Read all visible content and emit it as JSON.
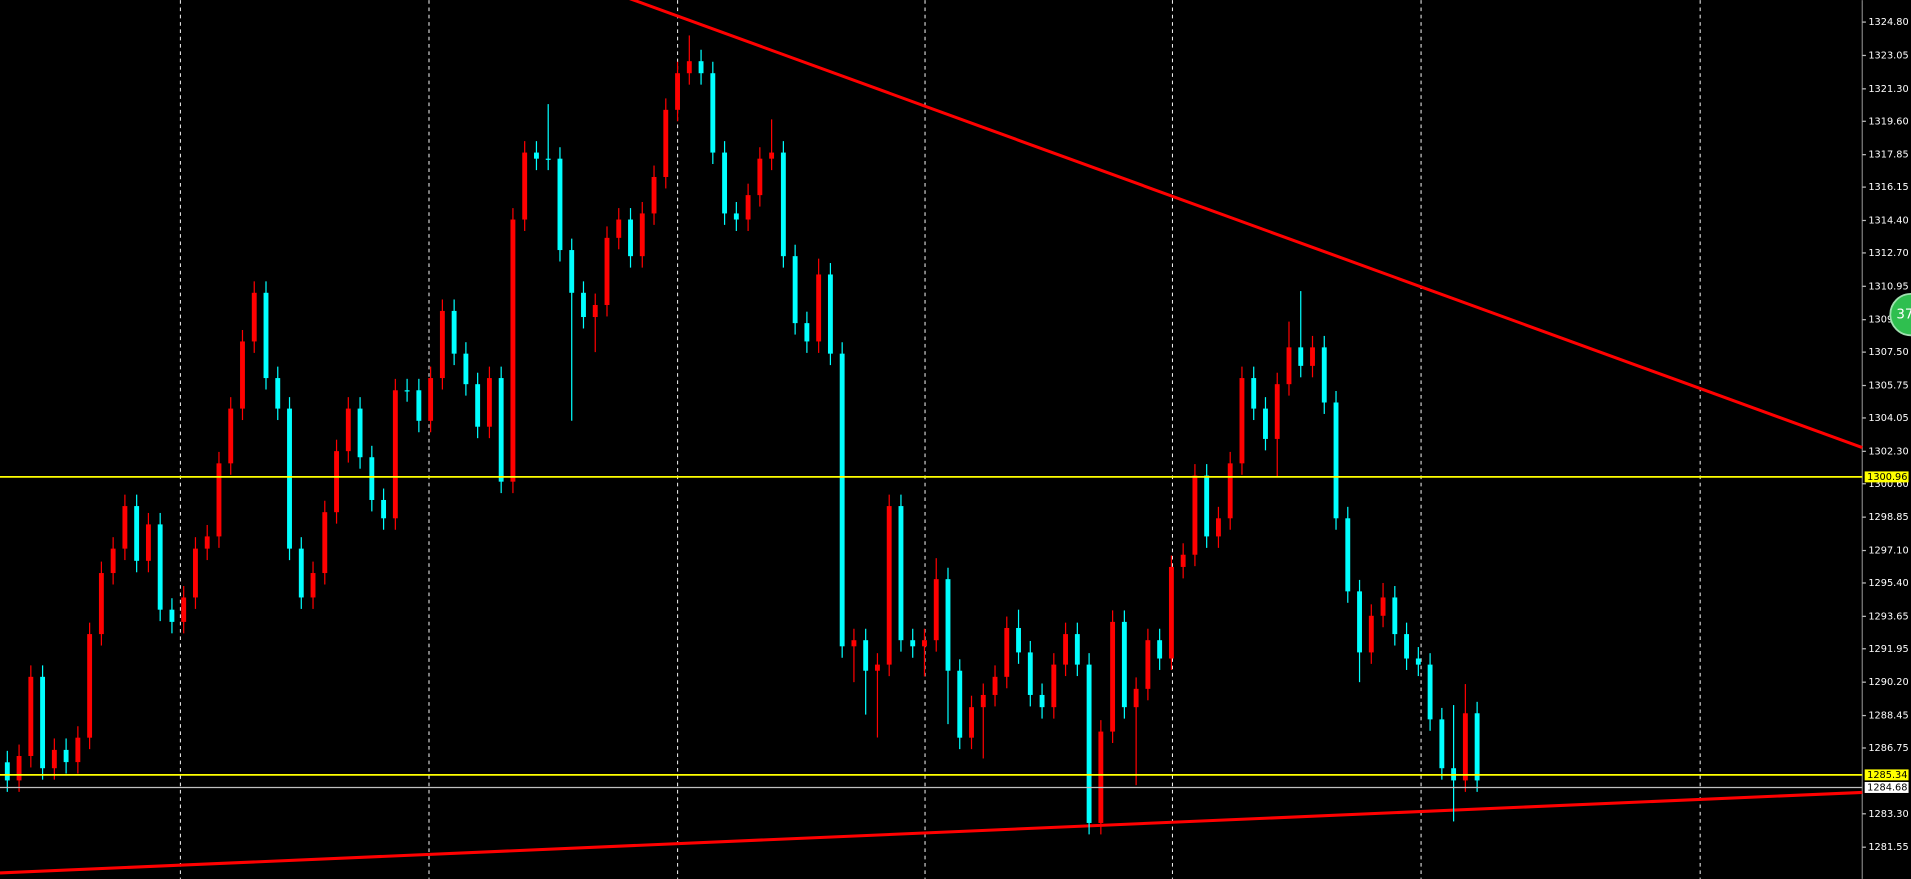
{
  "chart_data": {
    "type": "candlestick",
    "open": [
      1286.0,
      1285.05,
      1286.33,
      1290.48,
      1285.69,
      1286.65,
      1286.01,
      1287.29,
      1292.72,
      1295.92,
      1297.2,
      1299.43,
      1296.56,
      1298.47,
      1294.0,
      1293.36,
      1294.64,
      1297.2,
      1297.84,
      1301.67,
      1304.54,
      1308.06,
      1310.61,
      1306.14,
      1304.54,
      1297.2,
      1294.64,
      1295.92,
      1299.11,
      1302.31,
      1304.54,
      1301.99,
      1299.75,
      1298.79,
      1305.5,
      1305.5,
      1303.9,
      1306.14,
      1309.66,
      1307.42,
      1305.82,
      1303.59,
      1306.14,
      1300.71,
      1314.45,
      1317.96,
      1317.64,
      1317.64,
      1312.85,
      1310.61,
      1309.34,
      1309.97,
      1313.49,
      1314.45,
      1312.53,
      1314.77,
      1316.68,
      1320.2,
      1322.12,
      1322.75,
      1322.12,
      1317.96,
      1314.77,
      1314.45,
      1315.73,
      1317.64,
      1317.96,
      1312.53,
      1309.02,
      1308.06,
      1311.57,
      1307.42,
      1292.08,
      1292.4,
      1290.8,
      1291.12,
      1299.43,
      1292.4,
      1292.08,
      1292.4,
      1295.6,
      1290.8,
      1287.29,
      1288.89,
      1289.53,
      1290.48,
      1293.04,
      1291.76,
      1289.53,
      1288.89,
      1291.12,
      1292.72,
      1291.12,
      1282.82,
      1287.61,
      1293.36,
      1288.89,
      1289.85,
      1292.4,
      1291.44,
      1296.24,
      1296.88,
      1301.03,
      1297.84,
      1298.79,
      1301.67,
      1306.14,
      1304.54,
      1302.95,
      1305.82,
      1307.75,
      1306.78,
      1307.75,
      1304.86,
      1298.79,
      1294.96,
      1291.76,
      1293.68,
      1294.64,
      1292.72,
      1291.44,
      1291.12,
      1288.25,
      1285.69,
      1285.05,
      1288.57
    ],
    "high": [
      1286.6,
      1286.93,
      1291.08,
      1291.08,
      1287.25,
      1287.25,
      1287.89,
      1293.32,
      1296.52,
      1297.8,
      1300.03,
      1300.03,
      1299.07,
      1299.07,
      1294.6,
      1295.24,
      1297.8,
      1298.44,
      1302.27,
      1305.14,
      1308.66,
      1311.21,
      1311.21,
      1306.74,
      1305.14,
      1297.8,
      1296.52,
      1299.71,
      1302.91,
      1305.14,
      1305.14,
      1302.59,
      1300.35,
      1306.1,
      1306.1,
      1306.1,
      1306.74,
      1310.26,
      1310.26,
      1308.02,
      1306.42,
      1306.74,
      1306.74,
      1315.05,
      1318.56,
      1318.56,
      1320.5,
      1318.24,
      1313.45,
      1311.21,
      1310.57,
      1314.09,
      1315.05,
      1315.05,
      1315.37,
      1317.28,
      1320.8,
      1322.72,
      1324.1,
      1323.35,
      1322.72,
      1318.56,
      1315.37,
      1316.33,
      1318.24,
      1319.7,
      1318.56,
      1313.13,
      1309.62,
      1312.4,
      1312.17,
      1308.02,
      1293.0,
      1293.0,
      1291.72,
      1300.03,
      1300.03,
      1293.0,
      1293.0,
      1296.7,
      1296.2,
      1291.4,
      1289.49,
      1290.13,
      1291.08,
      1293.64,
      1294.0,
      1292.36,
      1290.13,
      1291.72,
      1293.32,
      1293.32,
      1291.72,
      1288.21,
      1293.96,
      1293.96,
      1290.45,
      1293.0,
      1293.0,
      1296.84,
      1297.48,
      1301.63,
      1301.63,
      1299.39,
      1302.27,
      1306.74,
      1306.74,
      1305.14,
      1306.42,
      1309.1,
      1310.7,
      1308.35,
      1308.35,
      1305.46,
      1299.39,
      1295.56,
      1294.28,
      1295.4,
      1295.24,
      1293.32,
      1292.04,
      1291.72,
      1288.85,
      1289.0,
      1290.1,
      1289.17
    ],
    "low": [
      1284.45,
      1284.45,
      1285.73,
      1285.09,
      1285.09,
      1285.41,
      1285.41,
      1286.69,
      1292.12,
      1295.32,
      1296.6,
      1295.96,
      1295.96,
      1293.4,
      1292.76,
      1292.76,
      1294.04,
      1296.6,
      1297.24,
      1301.07,
      1303.94,
      1307.46,
      1305.54,
      1303.94,
      1296.6,
      1294.04,
      1294.04,
      1295.32,
      1298.51,
      1301.71,
      1301.39,
      1299.15,
      1298.19,
      1298.19,
      1304.9,
      1303.3,
      1303.3,
      1305.54,
      1306.82,
      1305.22,
      1302.99,
      1302.99,
      1300.11,
      1300.11,
      1313.85,
      1317.04,
      1317.04,
      1312.25,
      1303.9,
      1308.74,
      1307.5,
      1309.37,
      1312.89,
      1311.93,
      1311.93,
      1314.17,
      1316.08,
      1319.6,
      1321.52,
      1321.52,
      1317.36,
      1314.17,
      1313.85,
      1313.85,
      1315.13,
      1317.04,
      1311.93,
      1308.42,
      1307.46,
      1307.46,
      1306.82,
      1291.48,
      1290.2,
      1288.5,
      1287.3,
      1290.52,
      1291.8,
      1291.48,
      1290.5,
      1291.8,
      1288.0,
      1286.69,
      1286.69,
      1286.2,
      1288.93,
      1289.88,
      1291.16,
      1288.93,
      1288.29,
      1288.29,
      1290.52,
      1290.52,
      1282.22,
      1282.22,
      1287.01,
      1288.29,
      1284.8,
      1289.25,
      1290.84,
      1290.84,
      1295.64,
      1296.28,
      1297.24,
      1297.24,
      1298.19,
      1301.07,
      1303.94,
      1302.35,
      1301.0,
      1305.22,
      1306.18,
      1306.18,
      1304.26,
      1298.19,
      1294.36,
      1290.2,
      1291.16,
      1293.08,
      1292.12,
      1290.84,
      1290.52,
      1287.65,
      1285.09,
      1282.9,
      1284.45,
      1284.45
    ],
    "close": [
      1285.05,
      1286.33,
      1290.48,
      1285.69,
      1286.65,
      1286.01,
      1287.29,
      1292.72,
      1295.92,
      1297.2,
      1299.43,
      1296.56,
      1298.47,
      1294.0,
      1293.36,
      1294.64,
      1297.2,
      1297.84,
      1301.67,
      1304.54,
      1308.06,
      1310.61,
      1306.14,
      1304.54,
      1297.2,
      1294.64,
      1295.92,
      1299.11,
      1302.31,
      1304.54,
      1301.99,
      1299.75,
      1298.79,
      1305.5,
      1305.5,
      1303.9,
      1306.14,
      1309.66,
      1307.42,
      1305.82,
      1303.59,
      1306.14,
      1300.71,
      1314.45,
      1317.96,
      1317.64,
      1317.64,
      1312.85,
      1310.61,
      1309.34,
      1309.97,
      1313.49,
      1314.45,
      1312.53,
      1314.77,
      1316.68,
      1320.2,
      1322.12,
      1322.75,
      1322.12,
      1317.96,
      1314.77,
      1314.45,
      1315.73,
      1317.64,
      1317.96,
      1312.53,
      1309.02,
      1308.06,
      1311.57,
      1307.42,
      1292.08,
      1292.4,
      1290.8,
      1291.12,
      1299.43,
      1292.4,
      1292.08,
      1292.4,
      1295.6,
      1290.8,
      1287.29,
      1288.89,
      1289.53,
      1290.48,
      1293.04,
      1291.76,
      1289.53,
      1288.89,
      1291.12,
      1292.72,
      1291.12,
      1282.82,
      1287.61,
      1293.36,
      1288.89,
      1289.85,
      1292.4,
      1291.44,
      1296.24,
      1296.88,
      1301.03,
      1297.84,
      1298.79,
      1301.67,
      1306.14,
      1304.54,
      1302.95,
      1305.82,
      1307.75,
      1306.78,
      1307.75,
      1304.86,
      1298.79,
      1294.96,
      1291.76,
      1293.68,
      1294.64,
      1292.72,
      1291.44,
      1291.12,
      1288.25,
      1285.69,
      1285.05,
      1288.57,
      1285.05
    ],
    "up_color": "#ff0000",
    "down_color": "#00ffff",
    "ylim": [
      1279.89,
      1325.95
    ],
    "yticks": [
      {
        "value": 1324.8,
        "label": "1324.80"
      },
      1323.05,
      {
        "value": 1321.3,
        "label": "1321.30"
      },
      {
        "value": 1319.6,
        "label": "1319.60"
      },
      1317.85,
      1316.15,
      {
        "value": 1314.4,
        "label": "1314.40"
      },
      {
        "value": 1312.7,
        "label": "1312.70"
      },
      1310.95,
      {
        "value": 1309.2,
        "label": "1309.20"
      },
      {
        "value": 1307.5,
        "label": "1307.50"
      },
      1305.75,
      1304.05,
      {
        "value": 1302.3,
        "label": "1302.30"
      },
      {
        "value": 1300.6,
        "label": "1300.60"
      },
      1298.85,
      {
        "value": 1297.1,
        "label": "1297.10"
      },
      {
        "value": 1295.4,
        "label": "1295.40"
      },
      1293.65,
      1291.95,
      {
        "value": 1290.2,
        "label": "1290.20"
      },
      1288.45,
      1286.75,
      {
        "value": 1283.3,
        "label": "1283.30"
      },
      1281.55
    ],
    "levels": [
      {
        "value": 1300.96,
        "color": "#ffff00"
      },
      {
        "value": 1285.34,
        "color": "#ffff00"
      },
      {
        "value": 1284.68,
        "color": "#c0c0c0"
      }
    ],
    "trendlines": [
      {
        "color": "#ff0000",
        "start": 1338.05,
        "end": 1302.5
      },
      {
        "color": "#ff0000",
        "start": 1280.2,
        "end": 1284.42
      }
    ],
    "badge": "37"
  }
}
